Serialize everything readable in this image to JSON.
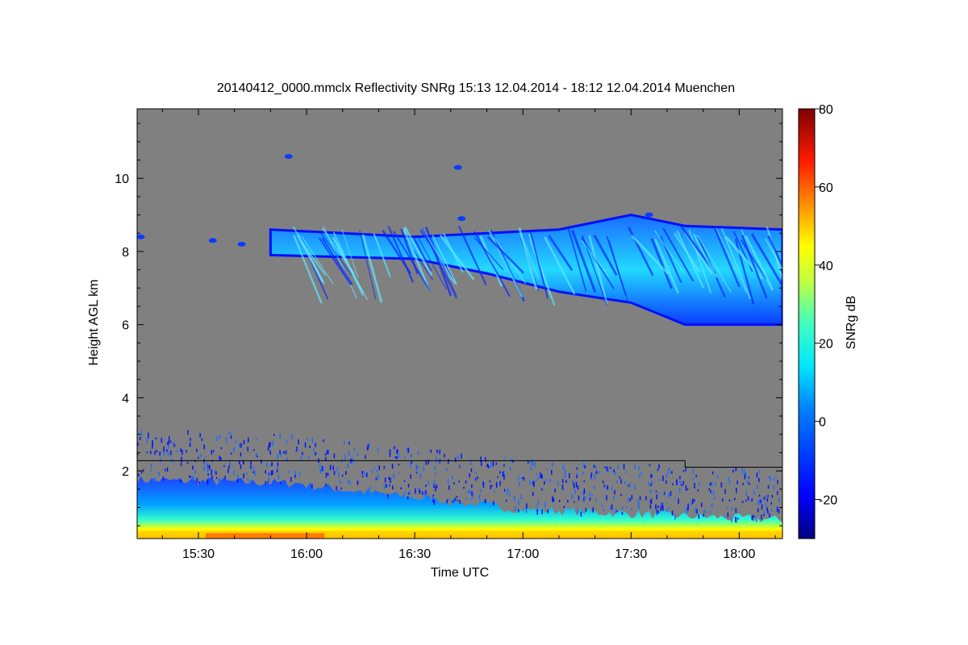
{
  "chart_data": {
    "type": "heatmap",
    "title": "20140412_0000.mmclx Reflectivity SNRg   15:13 12.04.2014 - 18:12 12.04.2014 Muenchen",
    "xlabel": "Time UTC",
    "ylabel": "Height AGL km",
    "colorbar_label": "SNRg dB",
    "x_range_min": [
      913,
      1092
    ],
    "y_range_km": [
      0.15,
      11.9
    ],
    "x_tick_values_min": [
      930,
      960,
      990,
      1020,
      1050,
      1080
    ],
    "x_tick_labels": [
      "15:30",
      "16:00",
      "16:30",
      "17:00",
      "17:30",
      "18:00"
    ],
    "y_tick_values": [
      2,
      4,
      6,
      8,
      10
    ],
    "y_tick_labels": [
      "2",
      "4",
      "6",
      "8",
      "10"
    ],
    "colorbar_range": [
      -30,
      80
    ],
    "colorbar_tick_values": [
      -20,
      0,
      20,
      40,
      60,
      80
    ],
    "colorbar_tick_labels": [
      "-20",
      "0",
      "20",
      "40",
      "60",
      "80"
    ],
    "colormap": [
      "#00007f",
      "#0000ff",
      "#007fff",
      "#00ffff",
      "#7fff7f",
      "#ffff00",
      "#ff7f00",
      "#ff0000",
      "#7f0000"
    ],
    "background_color": "#808080",
    "boundary_line": [
      {
        "time_min": 913,
        "height_km": 2.28
      },
      {
        "time_min": 1065,
        "height_km": 2.28
      },
      {
        "time_min": 1065,
        "height_km": 2.1
      },
      {
        "time_min": 1092,
        "height_km": 2.1
      }
    ],
    "cloud_layer": {
      "description_scale": "SNRg dB",
      "base_km": [
        {
          "time_min": 950,
          "height_km": 7.9
        },
        {
          "time_min": 990,
          "height_km": 7.8
        },
        {
          "time_min": 1010,
          "height_km": 7.4
        },
        {
          "time_min": 1030,
          "height_km": 6.9
        },
        {
          "time_min": 1050,
          "height_km": 6.6
        },
        {
          "time_min": 1065,
          "height_km": 6.0
        },
        {
          "time_min": 1092,
          "height_km": 6.0
        }
      ],
      "top_km": [
        {
          "time_min": 950,
          "height_km": 8.6
        },
        {
          "time_min": 990,
          "height_km": 8.4
        },
        {
          "time_min": 1010,
          "height_km": 8.5
        },
        {
          "time_min": 1030,
          "height_km": 8.6
        },
        {
          "time_min": 1050,
          "height_km": 9.0
        },
        {
          "time_min": 1065,
          "height_km": 8.7
        },
        {
          "time_min": 1092,
          "height_km": 8.6
        }
      ]
    },
    "grid": false
  }
}
